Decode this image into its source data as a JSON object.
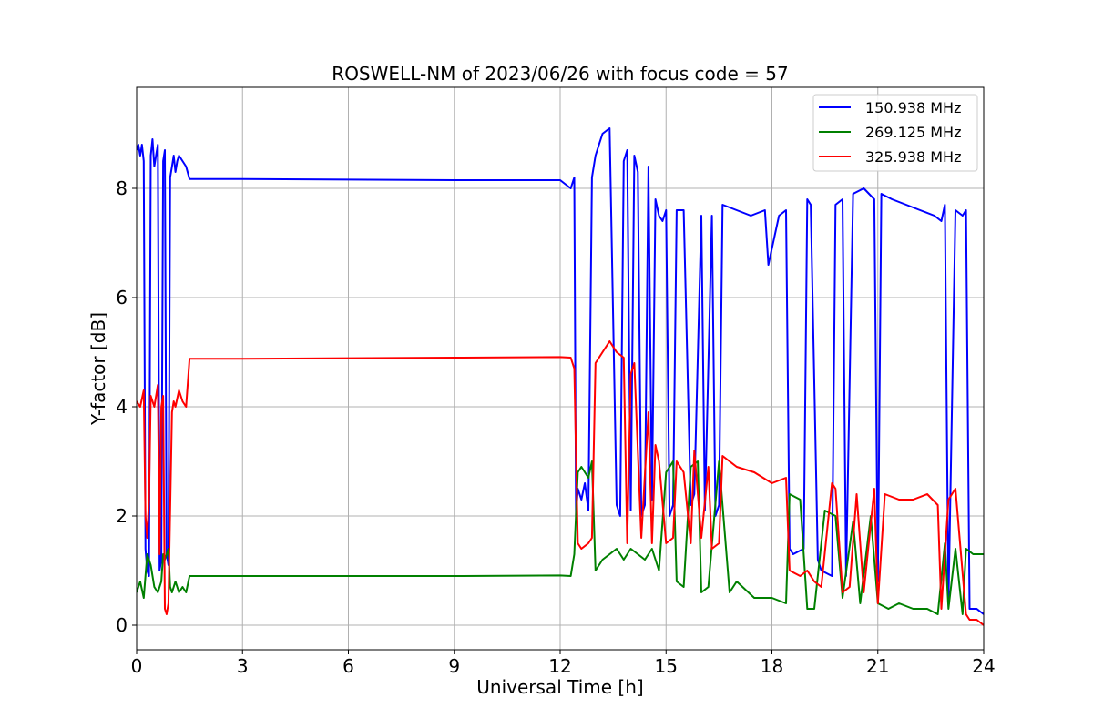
{
  "chart_data": {
    "type": "line",
    "title": "ROSWELL-NM of 2023/06/26 with focus code = 57",
    "xlabel": "Universal Time [h]",
    "ylabel": "Y-factor [dB]",
    "xlim": [
      0,
      24
    ],
    "ylim": [
      -0.45,
      9.85
    ],
    "xticks": [
      0,
      3,
      6,
      9,
      12,
      15,
      18,
      21,
      24
    ],
    "yticks": [
      0,
      2,
      4,
      6,
      8
    ],
    "grid": true,
    "legend_position": "top-right",
    "series": [
      {
        "name": "150.938 MHz",
        "color": "#0000ff",
        "x": [
          0,
          0.05,
          0.1,
          0.15,
          0.2,
          0.25,
          0.3,
          0.35,
          0.4,
          0.45,
          0.5,
          0.55,
          0.6,
          0.65,
          0.7,
          0.75,
          0.8,
          0.85,
          0.9,
          0.95,
          1.0,
          1.05,
          1.1,
          1.15,
          1.2,
          1.3,
          1.4,
          1.5,
          3,
          6,
          9,
          12,
          12.3,
          12.4,
          12.45,
          12.5,
          12.6,
          12.7,
          12.8,
          12.9,
          13.0,
          13.1,
          13.2,
          13.4,
          13.6,
          13.7,
          13.8,
          13.9,
          14.0,
          14.1,
          14.2,
          14.3,
          14.4,
          14.5,
          14.6,
          14.7,
          14.8,
          14.9,
          15.0,
          15.1,
          15.2,
          15.3,
          15.5,
          15.7,
          15.8,
          16.0,
          16.1,
          16.3,
          16.4,
          16.5,
          16.6,
          17.0,
          17.4,
          17.8,
          17.9,
          18.2,
          18.4,
          18.5,
          18.6,
          18.9,
          19.0,
          19.1,
          19.3,
          19.4,
          19.7,
          19.8,
          20.0,
          20.1,
          20.3,
          20.6,
          20.9,
          21.0,
          21.1,
          21.4,
          21.8,
          22.2,
          22.6,
          22.8,
          22.9,
          23.0,
          23.2,
          23.4,
          23.5,
          23.6,
          23.8,
          24.0
        ],
        "y": [
          8.7,
          8.8,
          8.6,
          8.8,
          8.5,
          1.4,
          1.0,
          0.9,
          8.6,
          8.9,
          8.4,
          8.6,
          8.8,
          1.0,
          1.2,
          8.5,
          8.7,
          1.3,
          1.1,
          8.2,
          8.4,
          8.6,
          8.3,
          8.5,
          8.6,
          8.5,
          8.4,
          8.17,
          8.17,
          8.16,
          8.15,
          8.15,
          8.0,
          8.2,
          2.0,
          2.5,
          2.3,
          2.6,
          2.1,
          8.2,
          8.6,
          8.8,
          9.0,
          9.1,
          2.2,
          2.0,
          8.5,
          8.7,
          2.1,
          8.6,
          8.3,
          2.0,
          2.2,
          8.4,
          2.3,
          7.8,
          7.5,
          7.4,
          7.6,
          2.0,
          2.2,
          7.6,
          7.6,
          2.2,
          2.4,
          7.5,
          2.1,
          7.5,
          2.0,
          2.2,
          7.7,
          7.6,
          7.5,
          7.6,
          6.6,
          7.5,
          7.6,
          1.4,
          1.3,
          1.4,
          7.8,
          7.7,
          1.2,
          1.0,
          0.9,
          7.7,
          7.8,
          0.9,
          7.9,
          8.0,
          7.8,
          0.8,
          7.9,
          7.8,
          7.7,
          7.6,
          7.5,
          7.4,
          7.7,
          0.4,
          7.6,
          7.5,
          7.6,
          0.3,
          0.3,
          0.2
        ]
      },
      {
        "name": "269.125 MHz",
        "color": "#008000",
        "x": [
          0,
          0.1,
          0.2,
          0.3,
          0.4,
          0.5,
          0.6,
          0.7,
          0.75,
          0.8,
          0.9,
          0.95,
          1.0,
          1.1,
          1.2,
          1.3,
          1.4,
          1.5,
          3,
          6,
          9,
          12,
          12.3,
          12.4,
          12.5,
          12.6,
          12.8,
          12.9,
          13.0,
          13.2,
          13.4,
          13.6,
          13.7,
          13.8,
          14.0,
          14.2,
          14.4,
          14.6,
          14.8,
          15.0,
          15.2,
          15.3,
          15.5,
          15.7,
          15.9,
          16.0,
          16.2,
          16.5,
          16.8,
          17.0,
          17.5,
          18.0,
          18.4,
          18.5,
          18.8,
          19.0,
          19.2,
          19.5,
          19.8,
          20.0,
          20.3,
          20.5,
          20.8,
          21.0,
          21.3,
          21.6,
          22.0,
          22.4,
          22.7,
          22.9,
          23.0,
          23.2,
          23.4,
          23.5,
          23.7,
          24.0
        ],
        "y": [
          0.6,
          0.8,
          0.5,
          1.3,
          1.1,
          0.7,
          0.6,
          0.8,
          1.3,
          1.2,
          1.4,
          0.7,
          0.6,
          0.8,
          0.6,
          0.7,
          0.6,
          0.9,
          0.9,
          0.9,
          0.9,
          0.91,
          0.9,
          1.3,
          2.8,
          2.9,
          2.7,
          3.0,
          1.0,
          1.2,
          1.3,
          1.4,
          1.3,
          1.2,
          1.4,
          1.3,
          1.2,
          1.4,
          1.0,
          2.8,
          3.0,
          0.8,
          0.7,
          2.9,
          3.0,
          0.6,
          0.7,
          3.0,
          0.6,
          0.8,
          0.5,
          0.5,
          0.4,
          2.4,
          2.3,
          0.3,
          0.3,
          2.1,
          2.0,
          0.5,
          1.9,
          0.4,
          2.0,
          0.4,
          0.3,
          0.4,
          0.3,
          0.3,
          0.2,
          1.5,
          0.3,
          1.4,
          0.2,
          1.4,
          1.3,
          1.3
        ]
      },
      {
        "name": "325.938 MHz",
        "color": "#ff0000",
        "x": [
          0,
          0.1,
          0.2,
          0.25,
          0.3,
          0.35,
          0.4,
          0.5,
          0.6,
          0.65,
          0.7,
          0.75,
          0.8,
          0.85,
          0.9,
          1.0,
          1.05,
          1.1,
          1.2,
          1.3,
          1.4,
          1.5,
          3,
          6,
          9,
          12,
          12.3,
          12.4,
          12.5,
          12.6,
          12.8,
          12.9,
          13.0,
          13.2,
          13.4,
          13.6,
          13.8,
          13.9,
          14.0,
          14.1,
          14.3,
          14.5,
          14.6,
          14.7,
          14.8,
          15.0,
          15.2,
          15.3,
          15.5,
          15.7,
          15.8,
          16.0,
          16.2,
          16.3,
          16.5,
          16.6,
          17.0,
          17.5,
          18.0,
          18.4,
          18.5,
          18.8,
          19.0,
          19.2,
          19.4,
          19.7,
          19.8,
          20.0,
          20.2,
          20.4,
          20.6,
          20.9,
          21.0,
          21.2,
          21.6,
          22.0,
          22.4,
          22.7,
          22.8,
          23.0,
          23.2,
          23.5,
          23.6,
          23.8,
          24.0
        ],
        "y": [
          4.1,
          4.0,
          4.3,
          2.0,
          1.6,
          2.3,
          4.2,
          4.0,
          4.4,
          1.3,
          4.0,
          4.2,
          0.3,
          0.2,
          0.4,
          3.9,
          4.1,
          4.0,
          4.3,
          4.1,
          4.0,
          4.88,
          4.88,
          4.89,
          4.9,
          4.91,
          4.9,
          4.7,
          1.5,
          1.4,
          1.5,
          1.6,
          4.8,
          5.0,
          5.2,
          5.0,
          4.9,
          1.5,
          4.6,
          4.8,
          1.6,
          3.9,
          1.5,
          3.3,
          3.0,
          1.5,
          1.6,
          3.0,
          2.8,
          1.5,
          3.2,
          1.6,
          2.9,
          1.4,
          1.5,
          3.1,
          2.9,
          2.8,
          2.6,
          2.7,
          1.0,
          0.9,
          1.0,
          0.8,
          0.7,
          2.6,
          2.5,
          0.6,
          0.7,
          2.4,
          0.6,
          2.5,
          0.4,
          2.4,
          2.3,
          2.3,
          2.4,
          2.2,
          0.3,
          2.3,
          2.5,
          0.2,
          0.1,
          0.1,
          0.0
        ]
      }
    ]
  }
}
